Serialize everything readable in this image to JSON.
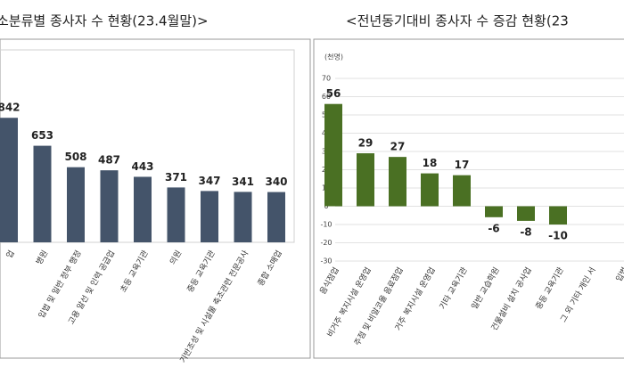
{
  "charts": [
    {
      "type": "bar",
      "title": "소분류별 종사자 수 현황(23.4월말)>",
      "categories": [
        "업",
        "병원",
        "입법 및 일반 정부 행정",
        "고용 알선 및 인력 공급업",
        "초등 교육기관",
        "의원",
        "중등 교육기관",
        "기반조성 및 시설물 축조관련 전문공사",
        "종합 소매업"
      ],
      "values": [
        842,
        653,
        508,
        487,
        443,
        371,
        347,
        341,
        340
      ],
      "color": "#44546a"
    },
    {
      "type": "bar",
      "title": "<전년동기대비 종사자 수 증감 현황(23",
      "unit": "(천명)",
      "categories": [
        "음식점업",
        "비거주 복지시설 운영업",
        "주점 및 비알코올 음료점업",
        "거주 복지시설 운영업",
        "기타 교육기관",
        "일반 교습학원",
        "건물설비 설치 공사업",
        "중등 교육기관",
        "그 외 기타 개인 서",
        "입법"
      ],
      "values": [
        56,
        29,
        27,
        18,
        17,
        -6,
        -8,
        -10,
        null,
        null
      ],
      "color": "#4a7023",
      "ylim": [
        -30,
        70
      ],
      "yticks": [
        -30,
        -20,
        -10,
        0,
        10,
        20,
        30,
        40,
        50,
        60,
        70
      ],
      "grid": true
    }
  ]
}
